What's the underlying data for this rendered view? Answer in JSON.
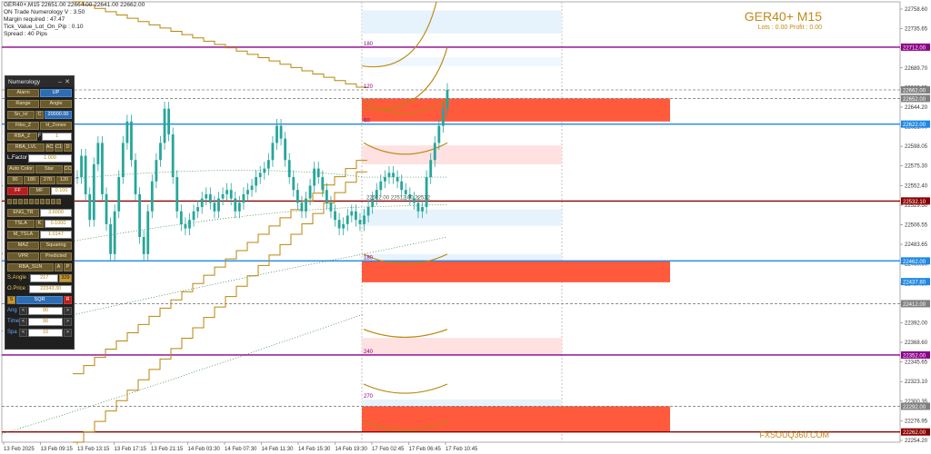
{
  "info": {
    "header": "GER40+,M15  22651.00 22664.00 22641.00 22662.00",
    "lines": [
      "ON Trade Numerology V : 3.50",
      "Margin required : 47.47",
      "Tick_Value_Lot_On_Pip : 0.10",
      "Spread : 40   Pips"
    ]
  },
  "symbol_title": "GER40+ M15",
  "lots_profit": "Lots : 0.00 Profit : 0.00",
  "watermark": "FXSOUQ360.COM",
  "panel": {
    "title": "Numerology",
    "alarm": "Alarm",
    "up": "UP",
    "range": "Range",
    "angle": "Angle",
    "sn_lvl": "Sn_lvl",
    "sn_lvl_a": "C",
    "sn_lvl_val": "20000.00",
    "fibo_z": "Fibo_Z",
    "h_zones": "H_Zones",
    "rba_z": "RBA_Z",
    "f_lbl": "F",
    "f_val": "1",
    "rba_lvl": "RBA_LVL",
    "ac": "AC",
    "c1": "C1",
    "d": "D",
    "lfactor_lbl": "L.Factor",
    "lfactor_val": "1.000",
    "auto_color": "Auto Color",
    "star": "Star",
    "cc": "CC",
    "deg": [
      "90",
      "180",
      "270",
      "120"
    ],
    "ff": "FF",
    "mf": "MF",
    "ff_val": "0.100",
    "digits": [
      "1",
      "2",
      "3",
      "4",
      "5",
      "6",
      "7",
      "8",
      "9",
      "10"
    ],
    "eng_tr": "ENG_TR",
    "eng_val": "3.6000",
    "tsla": "TSLA",
    "tsla_k": "K",
    "tsla_val": "0.1000",
    "m_tsla": "M_TSLA",
    "m_tsla_val": "1.0147",
    "maz": "MAZ",
    "squaring": "Squaring",
    "vpr": "VPR",
    "predicted": "Predicted",
    "rba_sun": "RBA_SUN",
    "sun_a": "A",
    "sun_p": "P",
    "s_angle_lbl": "S.Angle :",
    "s_angle_val": "217",
    "s_angle_val2": "329",
    "o_price_lbl": "O.Price :",
    "o_price_val": "22343.30",
    "s_btn": "S",
    "sqr_btn": "SQR",
    "r_btn": "R",
    "ang_lbl": "Ang",
    "ang_val": "90",
    "time_lbl": "Time",
    "time_val": "90",
    "spa_lbl": "Spa",
    "spa_val": "10",
    "arrow_l": "<",
    "arrow_r": ">"
  },
  "colors": {
    "candle": "#26a69a",
    "gold": "#b8860b",
    "purple": "#8b008b",
    "blue": "#1e88e5",
    "darkred": "#8b0000",
    "zone_red": "#ff5a3c"
  },
  "chart_data": {
    "type": "candlestick",
    "ylim": [
      22250,
      22765
    ],
    "y_ticks": [
      "22758.60",
      "22735.65",
      "22712.00",
      "22689.70",
      "22666.85",
      "22644.20",
      "22621.00",
      "22598.05",
      "22575.30",
      "22552.40",
      "22529.50",
      "22506.55",
      "22483.65",
      "22460.90",
      "22437.80",
      "22412.00",
      "22392.00",
      "22368.60",
      "22345.65",
      "22323.10",
      "22300.35",
      "22276.95",
      "22254.20"
    ],
    "x_ticks": [
      "13 Feb 2025",
      "13 Feb 09:15",
      "13 Feb 13:15",
      "13 Feb 17:15",
      "13 Feb 21:15",
      "14 Feb 03:30",
      "14 Feb 07:30",
      "14 Feb 11:30",
      "14 Feb 15:30",
      "14 Feb 19:30",
      "17 Feb 02:45",
      "17 Feb 06:45",
      "17 Feb 10:45"
    ],
    "price_labels": [
      {
        "text": "22712.00",
        "color": "#8b008b"
      },
      {
        "text": "22662.00",
        "color": "#808080"
      },
      {
        "text": "22652.00",
        "color": "#808080"
      },
      {
        "text": "22622.00",
        "color": "#1e88e5"
      },
      {
        "text": "22532.10",
        "color": "#8b0000"
      },
      {
        "text": "22462.00",
        "color": "#1e88e5"
      },
      {
        "text": "22437.80",
        "color": "#1e88e5"
      },
      {
        "text": "22412.00",
        "color": "#808080"
      },
      {
        "text": "22352.00",
        "color": "#8b008b"
      },
      {
        "text": "22292.00",
        "color": "#808080"
      },
      {
        "text": "22262.00",
        "color": "#8b0000"
      }
    ],
    "h_lines": [
      {
        "y": 22712,
        "color": "#8b008b",
        "dash": false
      },
      {
        "y": 22662,
        "color": "#808080",
        "dash": true
      },
      {
        "y": 22652,
        "color": "#808080",
        "dash": true
      },
      {
        "y": 22622,
        "color": "#1e88e5",
        "dash": false
      },
      {
        "y": 22532,
        "color": "#8b0000",
        "dash": false
      },
      {
        "y": 22462,
        "color": "#1e88e5",
        "dash": false
      },
      {
        "y": 22412,
        "color": "#808080",
        "dash": true
      },
      {
        "y": 22352,
        "color": "#8b008b",
        "dash": false
      },
      {
        "y": 22292,
        "color": "#808080",
        "dash": true
      },
      {
        "y": 22262,
        "color": "#8b0000",
        "dash": false
      }
    ],
    "zone_labels": [
      "180",
      "120",
      "60",
      "180",
      "240",
      "270"
    ],
    "mid_label": "22512.00 22512.00 22532",
    "closes": [
      22560,
      22585,
      22540,
      22510,
      22575,
      22600,
      22540,
      22505,
      22470,
      22520,
      22560,
      22600,
      22625,
      22580,
      22540,
      22490,
      22470,
      22520,
      22555,
      22580,
      22600,
      22640,
      22610,
      22560,
      22520,
      22505,
      22500,
      22510,
      22520,
      22525,
      22535,
      22540,
      22530,
      22520,
      22535,
      22540,
      22545,
      22535,
      22520,
      22530,
      22540,
      22545,
      22550,
      22560,
      22565,
      22570,
      22580,
      22600,
      22620,
      22605,
      22580,
      22560,
      22545,
      22530,
      22520,
      22535,
      22550,
      22570,
      22560,
      22545,
      22530,
      22520,
      22510,
      22500,
      22505,
      22515,
      22520,
      22510,
      22505,
      22515,
      22525,
      22535,
      22545,
      22555,
      22560,
      22565,
      22560,
      22555,
      22545,
      22540,
      22535,
      22530,
      22520,
      22525,
      22560,
      22580,
      22600,
      22620,
      22640,
      22662
    ]
  }
}
